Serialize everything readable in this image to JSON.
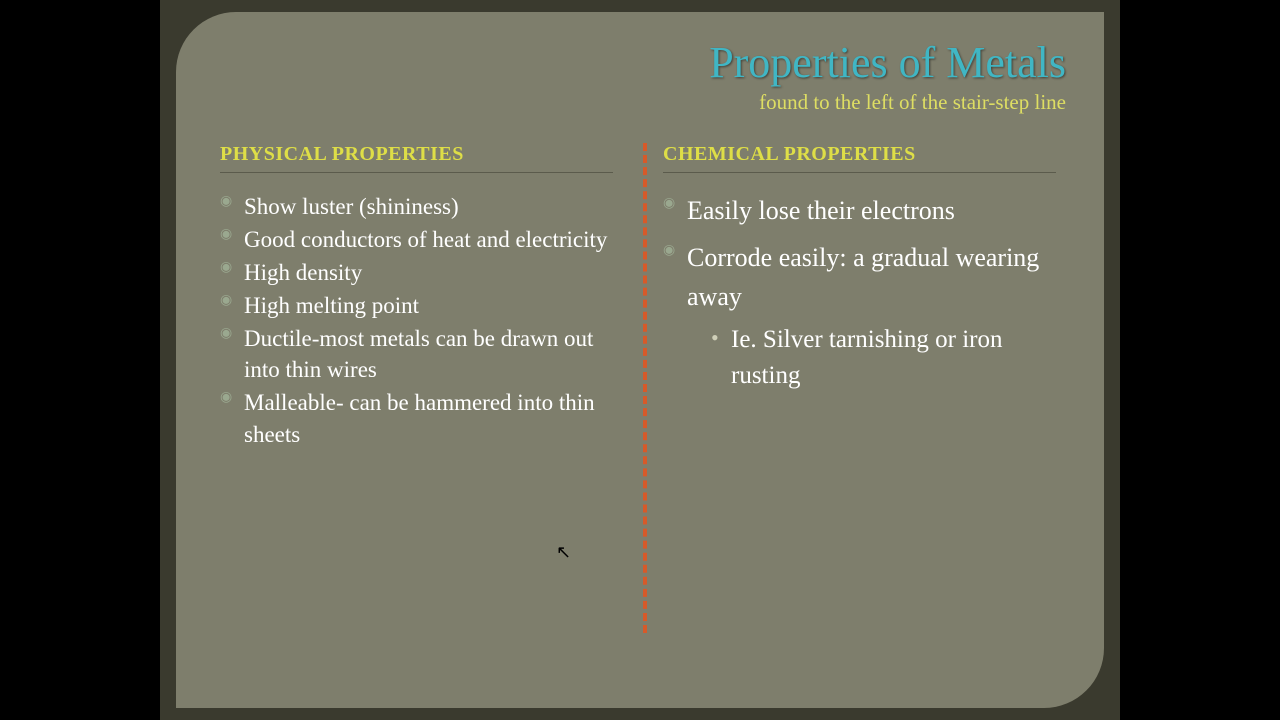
{
  "colors": {
    "page_bg": "#000000",
    "frame_bg": "#3a3a2e",
    "slide_bg": "#7e7e6c",
    "title": "#40b6c4",
    "subtitle": "#dede63",
    "heading": "#dede47",
    "body_text": "#ffffff",
    "bullet_marker": "#9aa88f",
    "divider": "#d65a2a",
    "underline": "#5b5b4c"
  },
  "typography": {
    "title_fontsize": 44,
    "subtitle_fontsize": 21,
    "heading_fontsize": 20,
    "body_fontsize": 23,
    "body_large_fontsize": 26,
    "sub_fontsize": 25,
    "font_family": "Georgia, serif"
  },
  "layout": {
    "slide_width": 960,
    "slide_height": 720,
    "corner_radius": 60
  },
  "title": "Properties of Metals",
  "subtitle": "found to the left of the stair-step line",
  "left": {
    "heading": "PHYSICAL PROPERTIES",
    "items": [
      "Show luster (shininess)",
      "Good conductors of heat and electricity",
      "High density",
      "High melting point",
      "Ductile-most metals can be drawn out into thin wires",
      "Malleable- can be hammered into thin sheets"
    ]
  },
  "right": {
    "heading": "CHEMICAL PROPERTIES",
    "items": [
      {
        "text": "Easily lose their electrons"
      },
      {
        "text": "Corrode easily:  a gradual wearing away",
        "sub": [
          "Ie. Silver tarnishing or iron rusting"
        ]
      }
    ]
  }
}
